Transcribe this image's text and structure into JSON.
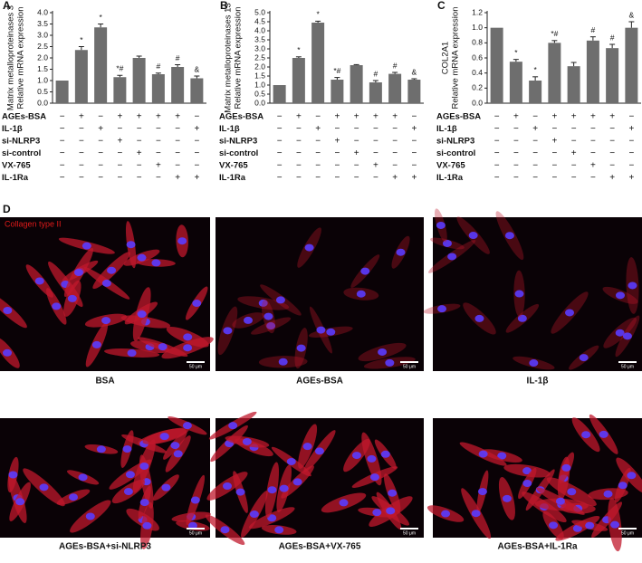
{
  "chart_data": [
    {
      "type": "bar",
      "panel": "A",
      "ylabel": [
        "Matrix metalloproteinases 3",
        "Relative mRNA expression"
      ],
      "color": "#6e6e6e",
      "values": [
        1,
        2.35,
        3.35,
        1.15,
        2.0,
        1.28,
        1.6,
        1.1
      ],
      "errors": [
        0,
        0.15,
        0.15,
        0.08,
        0.08,
        0.05,
        0.1,
        0.1
      ],
      "annotations": [
        null,
        "*",
        "*",
        "*#",
        null,
        "#",
        "#",
        "&"
      ],
      "ylim": [
        0,
        4
      ],
      "yticks": [
        {
          "value": 0,
          "label": "0.0"
        },
        {
          "value": 0.5,
          "label": "0.5"
        },
        {
          "value": 1,
          "label": "1.0"
        },
        {
          "value": 1.5,
          "label": "1.5"
        },
        {
          "value": 2,
          "label": "2.0"
        },
        {
          "value": 2.5,
          "label": "2.5"
        },
        {
          "value": 3,
          "label": "3.0"
        },
        {
          "value": 3.5,
          "label": "3.5"
        },
        {
          "value": 4,
          "label": "4.0"
        }
      ],
      "conditions": [
        {
          "name": "AGEs-BSA",
          "signs": [
            "−",
            "+",
            "−",
            "+",
            "+",
            "+",
            "+",
            "−"
          ]
        },
        {
          "name": "IL-1β",
          "signs": [
            "−",
            "−",
            "+",
            "−",
            "−",
            "−",
            "−",
            "+"
          ]
        },
        {
          "name": "si-NLRP3",
          "signs": [
            "−",
            "−",
            "−",
            "+",
            "−",
            "−",
            "−",
            "−"
          ]
        },
        {
          "name": "si-control",
          "signs": [
            "−",
            "−",
            "−",
            "−",
            "+",
            "−",
            "−",
            "−"
          ]
        },
        {
          "name": "VX-765",
          "signs": [
            "−",
            "−",
            "−",
            "−",
            "−",
            "+",
            "−",
            "−"
          ]
        },
        {
          "name": "IL-1Ra",
          "signs": [
            "−",
            "−",
            "−",
            "−",
            "−",
            "−",
            "+",
            "+"
          ]
        }
      ]
    },
    {
      "type": "bar",
      "panel": "B",
      "ylabel": [
        "Matrix metalloproteinases 13",
        "Relative mRNA expression"
      ],
      "color": "#6e6e6e",
      "values": [
        1,
        2.5,
        4.45,
        1.3,
        2.1,
        1.15,
        1.62,
        1.3
      ],
      "errors": [
        0,
        0.06,
        0.08,
        0.12,
        0.03,
        0.1,
        0.08,
        0.05
      ],
      "annotations": [
        null,
        "*",
        "*",
        "*#",
        null,
        "#",
        "#",
        "&"
      ],
      "ylim": [
        0,
        5
      ],
      "yticks": [
        {
          "value": 0,
          "label": "0.0"
        },
        {
          "value": 0.5,
          "label": "0.5"
        },
        {
          "value": 1,
          "label": "1.0"
        },
        {
          "value": 1.5,
          "label": "1.5"
        },
        {
          "value": 2,
          "label": "2.0"
        },
        {
          "value": 2.5,
          "label": "2.5"
        },
        {
          "value": 3,
          "label": "3.0"
        },
        {
          "value": 3.5,
          "label": "3.5"
        },
        {
          "value": 4,
          "label": "4.0"
        },
        {
          "value": 4.5,
          "label": "4.5"
        },
        {
          "value": 5,
          "label": "5.0"
        }
      ],
      "conditions": [
        {
          "name": "AGEs-BSA",
          "signs": [
            "−",
            "+",
            "−",
            "+",
            "+",
            "+",
            "+",
            "−"
          ]
        },
        {
          "name": "IL-1β",
          "signs": [
            "−",
            "−",
            "+",
            "−",
            "−",
            "−",
            "−",
            "+"
          ]
        },
        {
          "name": "si-NLRP3",
          "signs": [
            "−",
            "−",
            "−",
            "+",
            "−",
            "−",
            "−",
            "−"
          ]
        },
        {
          "name": "si-control",
          "signs": [
            "−",
            "−",
            "−",
            "−",
            "+",
            "−",
            "−",
            "−"
          ]
        },
        {
          "name": "VX-765",
          "signs": [
            "−",
            "−",
            "−",
            "−",
            "−",
            "+",
            "−",
            "−"
          ]
        },
        {
          "name": "IL-1Ra",
          "signs": [
            "−",
            "−",
            "−",
            "−",
            "−",
            "−",
            "+",
            "+"
          ]
        }
      ]
    },
    {
      "type": "bar",
      "panel": "C",
      "ylabel": [
        "COL2A1",
        "Relative mRNA expression"
      ],
      "color": "#6e6e6e",
      "values": [
        1.0,
        0.55,
        0.3,
        0.8,
        0.49,
        0.83,
        0.73,
        1.0
      ],
      "errors": [
        0,
        0.03,
        0.05,
        0.03,
        0.05,
        0.05,
        0.05,
        0.08
      ],
      "annotations": [
        null,
        "*",
        "*",
        "*#",
        null,
        "#",
        "#",
        "&"
      ],
      "ylim": [
        0,
        1.2
      ],
      "yticks": [
        {
          "value": 0,
          "label": "0.0"
        },
        {
          "value": 0.2,
          "label": "0.2"
        },
        {
          "value": 0.4,
          "label": "0.4"
        },
        {
          "value": 0.6,
          "label": "0.6"
        },
        {
          "value": 0.8,
          "label": "0.8"
        },
        {
          "value": 1.0,
          "label": "1.0"
        },
        {
          "value": 1.2,
          "label": "1.2"
        }
      ],
      "conditions": [
        {
          "name": "AGEs-BSA",
          "signs": [
            "−",
            "+",
            "−",
            "+",
            "+",
            "+",
            "+",
            "−"
          ]
        },
        {
          "name": "IL-1β",
          "signs": [
            "−",
            "−",
            "+",
            "−",
            "−",
            "−",
            "−",
            "+"
          ]
        },
        {
          "name": "si-NLRP3",
          "signs": [
            "−",
            "−",
            "−",
            "+",
            "−",
            "−",
            "−",
            "−"
          ]
        },
        {
          "name": "si-control",
          "signs": [
            "−",
            "−",
            "−",
            "−",
            "+",
            "−",
            "−",
            "−"
          ]
        },
        {
          "name": "VX-765",
          "signs": [
            "−",
            "−",
            "−",
            "−",
            "−",
            "+",
            "−",
            "−"
          ]
        },
        {
          "name": "IL-1Ra",
          "signs": [
            "−",
            "−",
            "−",
            "−",
            "−",
            "−",
            "+",
            "+"
          ]
        }
      ]
    }
  ],
  "images": {
    "panel": "D",
    "overlay": "Collagen type II",
    "scale": "50 μm",
    "captions": [
      "BSA",
      "AGEs-BSA",
      "IL-1β",
      "AGEs-BSA+si-NLRP3",
      "AGEs-BSA+VX-765",
      "AGEs-BSA+IL-1Ra"
    ]
  }
}
